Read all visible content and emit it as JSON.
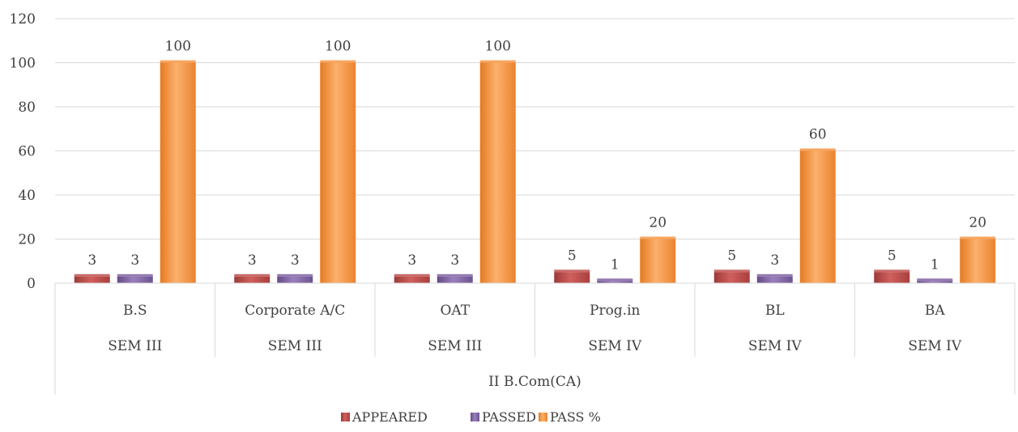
{
  "chart_data": {
    "type": "bar",
    "ylim": [
      0,
      120
    ],
    "yticks": [
      0,
      20,
      40,
      60,
      80,
      100,
      120
    ],
    "grid": true,
    "legend_position": "bottom",
    "categories": [
      "B.S",
      "Corporate A/C",
      "OAT",
      "Prog.in",
      "BL",
      "BA"
    ],
    "semesters": [
      "SEM III",
      "SEM III",
      "SEM III",
      "SEM IV",
      "SEM IV",
      "SEM IV"
    ],
    "group_label": "II B.Com(CA)",
    "series": [
      {
        "name": "APPEARED",
        "values": [
          3,
          3,
          3,
          5,
          5,
          5
        ],
        "color": "#C0504D"
      },
      {
        "name": "PASSED",
        "values": [
          3,
          3,
          3,
          1,
          3,
          1
        ],
        "color": "#8064A2"
      },
      {
        "name": "PASS %",
        "values": [
          100,
          100,
          100,
          20,
          60,
          20
        ],
        "color": "#F79646"
      }
    ]
  }
}
